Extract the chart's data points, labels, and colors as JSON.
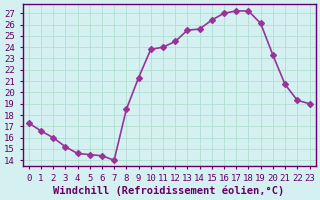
{
  "x": [
    0,
    1,
    2,
    3,
    4,
    5,
    6,
    7,
    8,
    9,
    10,
    11,
    12,
    13,
    14,
    15,
    16,
    17,
    18,
    19,
    20,
    21,
    22,
    23
  ],
  "y": [
    17.3,
    16.6,
    16.0,
    15.2,
    14.6,
    14.5,
    14.4,
    14.0,
    18.5,
    21.3,
    23.8,
    24.0,
    24.5,
    25.5,
    25.6,
    26.4,
    27.0,
    27.2,
    27.2,
    26.1,
    23.3,
    20.7,
    19.3,
    19.0
  ],
  "line_color": "#993399",
  "marker": "D",
  "marker_size": 3,
  "background_color": "#d4f0f0",
  "grid_color": "#aaddcc",
  "xlabel": "Windchill (Refroidissement éolien,°C)",
  "ylabel": "",
  "title": "",
  "xlim": [
    -0.5,
    23.5
  ],
  "ylim": [
    13.5,
    27.8
  ],
  "yticks": [
    14,
    15,
    16,
    17,
    18,
    19,
    20,
    21,
    22,
    23,
    24,
    25,
    26,
    27
  ],
  "xticks": [
    0,
    1,
    2,
    3,
    4,
    5,
    6,
    7,
    8,
    9,
    10,
    11,
    12,
    13,
    14,
    15,
    16,
    17,
    18,
    19,
    20,
    21,
    22,
    23
  ],
  "xtick_labels": [
    "0",
    "1",
    "2",
    "3",
    "4",
    "5",
    "6",
    "7",
    "8",
    "9",
    "10",
    "11",
    "12",
    "13",
    "14",
    "15",
    "16",
    "17",
    "18",
    "19",
    "20",
    "21",
    "22",
    "23"
  ],
  "axis_color": "#660066",
  "tick_label_color": "#660066",
  "xlabel_color": "#660066",
  "xlabel_fontsize": 7.5,
  "tick_fontsize": 6.5,
  "line_width": 1.2
}
